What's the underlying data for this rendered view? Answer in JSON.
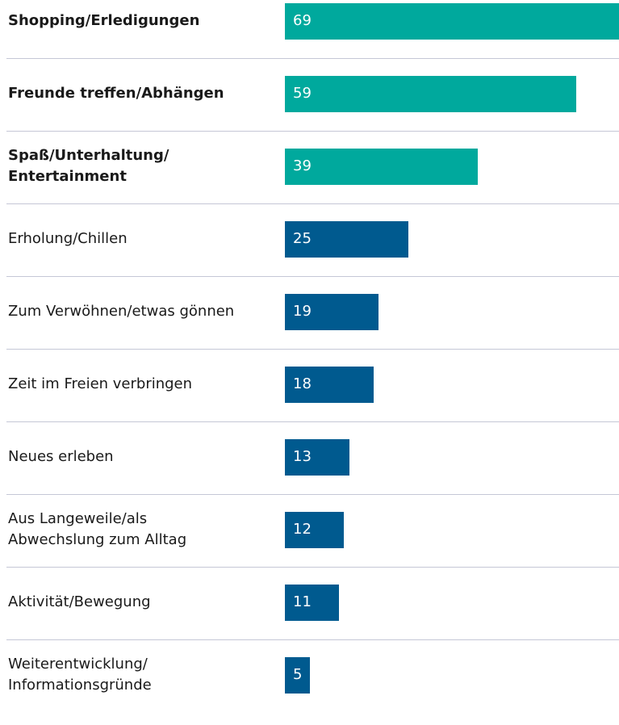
{
  "chart_data": {
    "type": "bar",
    "orientation": "horizontal",
    "categories": [
      "Shopping/Erledigungen",
      "Freunde treffen/Abhängen",
      "Spaß/Unterhaltung/\nEntertainment",
      "Erholung/Chillen",
      "Zum Verwöhnen/etwas gönnen",
      "Zeit im Freien verbringen",
      "Neues erleben",
      "Aus Langeweile/als\nAbwechslung zum Alltag",
      "Aktivität/Bewegung",
      "Weiterentwicklung/\nInformationsgründe"
    ],
    "values": [
      69,
      59,
      39,
      25,
      19,
      18,
      13,
      12,
      11,
      5
    ],
    "colors": [
      "#00a99d",
      "#00a99d",
      "#00a99d",
      "#005a8f",
      "#005a8f",
      "#005a8f",
      "#005a8f",
      "#005a8f",
      "#005a8f",
      "#005a8f"
    ],
    "bold": [
      true,
      true,
      true,
      false,
      false,
      false,
      false,
      false,
      false,
      false
    ],
    "value_labels_inside": true
  }
}
